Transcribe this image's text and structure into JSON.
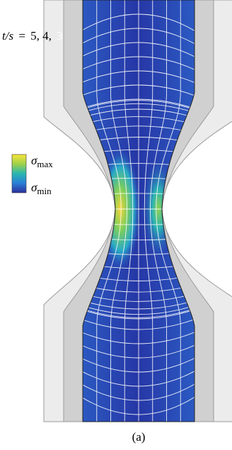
{
  "figure": {
    "thickness_label": {
      "lhs": "t/s",
      "eq": "=",
      "values_dark": "5,  4,",
      "value_light": "3"
    },
    "colorbar": {
      "max_label": {
        "symbol": "σ",
        "subscript": "max"
      },
      "min_label": {
        "symbol": "σ",
        "subscript": "min"
      }
    },
    "caption": "(a)"
  }
}
